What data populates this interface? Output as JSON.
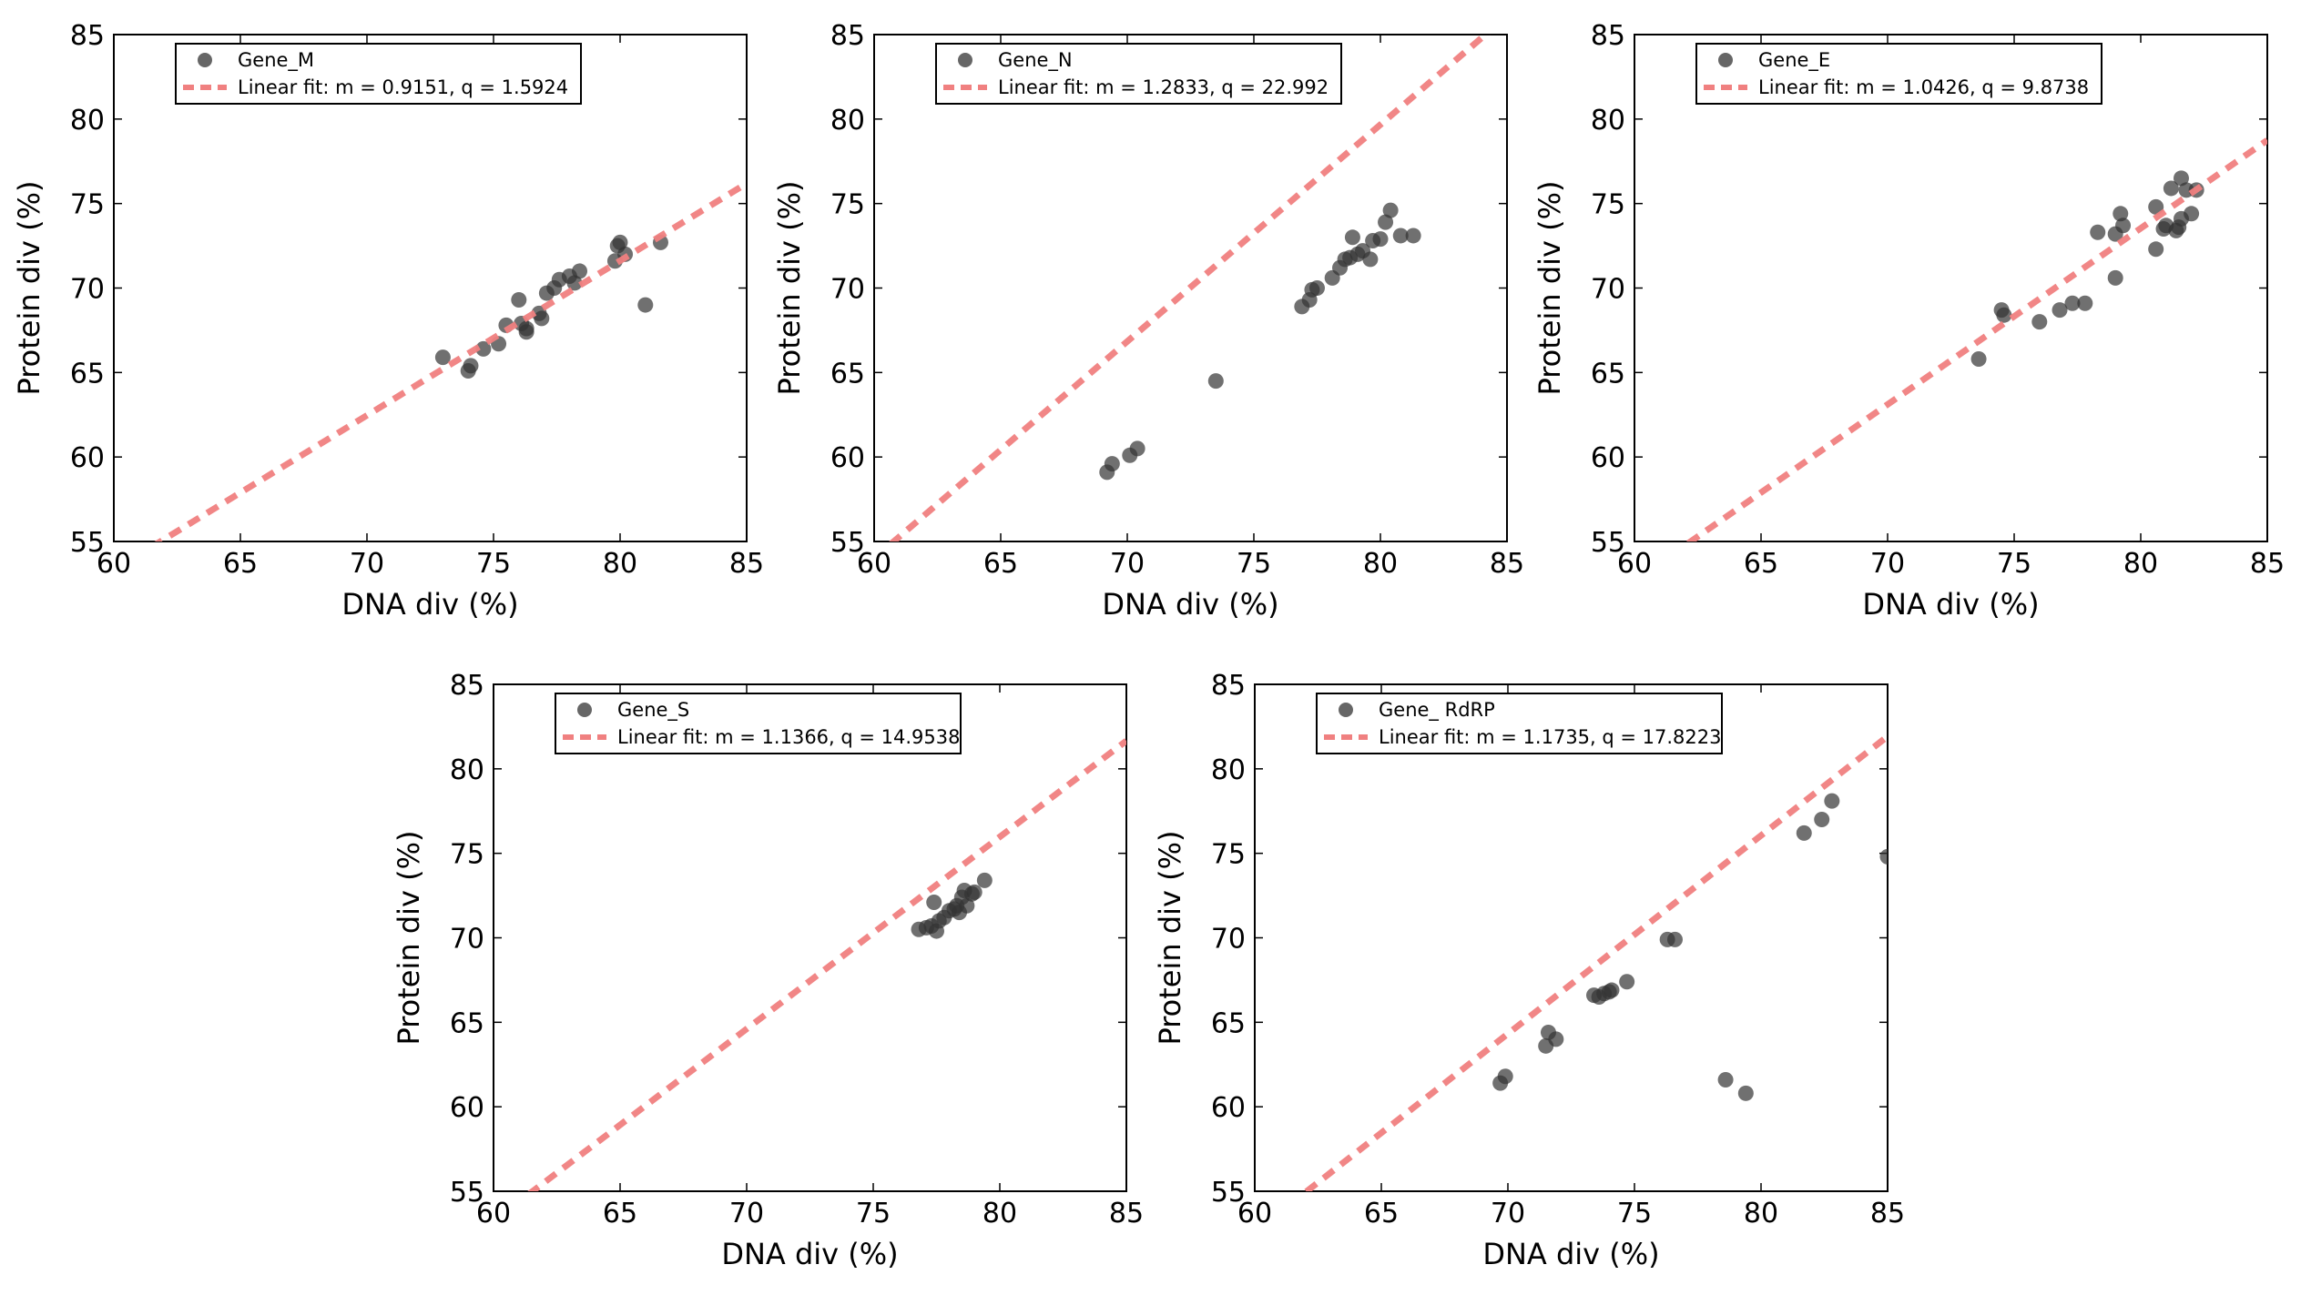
{
  "figure": {
    "description_free": true
  },
  "chart_data": [
    {
      "type": "scatter",
      "title": "",
      "xlabel": "DNA div (%)",
      "ylabel": "Protein div (%)",
      "xlim": [
        60,
        85
      ],
      "ylim": [
        55,
        85
      ],
      "xticks": [
        "60",
        "65",
        "70",
        "75",
        "80",
        "85"
      ],
      "yticks": [
        "55",
        "60",
        "65",
        "70",
        "75",
        "80",
        "85"
      ],
      "legend_position": "top-left",
      "series_name": "Gene_M",
      "fit_label": "Linear fit: m = 0.9151, q = 1.5924",
      "fit": {
        "m": 0.9151,
        "q": 1.5924
      },
      "points": [
        [
          73.0,
          65.9
        ],
        [
          74.0,
          65.1
        ],
        [
          74.1,
          65.4
        ],
        [
          74.6,
          66.4
        ],
        [
          75.2,
          66.7
        ],
        [
          75.5,
          67.8
        ],
        [
          76.0,
          69.3
        ],
        [
          76.1,
          67.9
        ],
        [
          76.3,
          67.4
        ],
        [
          76.3,
          67.6
        ],
        [
          76.8,
          68.5
        ],
        [
          76.9,
          68.2
        ],
        [
          77.1,
          69.7
        ],
        [
          77.4,
          70.0
        ],
        [
          77.6,
          70.5
        ],
        [
          78.0,
          70.7
        ],
        [
          78.2,
          70.3
        ],
        [
          78.4,
          71.0
        ],
        [
          79.8,
          71.6
        ],
        [
          79.9,
          72.5
        ],
        [
          80.0,
          72.7
        ],
        [
          80.2,
          72.0
        ],
        [
          81.0,
          69.0
        ],
        [
          81.6,
          72.7
        ]
      ]
    },
    {
      "type": "scatter",
      "title": "",
      "xlabel": "DNA div (%)",
      "ylabel": "Protein div (%)",
      "xlim": [
        60,
        85
      ],
      "ylim": [
        55,
        85
      ],
      "xticks": [
        "60",
        "65",
        "70",
        "75",
        "80",
        "85"
      ],
      "yticks": [
        "55",
        "60",
        "65",
        "70",
        "75",
        "80",
        "85"
      ],
      "legend_position": "top-left",
      "series_name": "Gene_N",
      "fit_label": "Linear fit: m = 1.2833, q = 22.992",
      "fit": {
        "m": 1.2833,
        "q": 22.992
      },
      "points": [
        [
          69.2,
          59.1
        ],
        [
          69.4,
          59.6
        ],
        [
          70.1,
          60.1
        ],
        [
          70.4,
          60.5
        ],
        [
          73.5,
          64.5
        ],
        [
          76.9,
          68.9
        ],
        [
          77.2,
          69.3
        ],
        [
          77.3,
          69.9
        ],
        [
          77.5,
          70.0
        ],
        [
          78.1,
          70.6
        ],
        [
          78.4,
          71.2
        ],
        [
          78.6,
          71.7
        ],
        [
          78.8,
          71.8
        ],
        [
          78.9,
          73.0
        ],
        [
          79.1,
          72.0
        ],
        [
          79.3,
          72.2
        ],
        [
          79.6,
          71.7
        ],
        [
          79.7,
          72.8
        ],
        [
          80.0,
          72.9
        ],
        [
          80.2,
          73.9
        ],
        [
          80.4,
          74.6
        ],
        [
          80.8,
          73.1
        ],
        [
          81.3,
          73.1
        ]
      ]
    },
    {
      "type": "scatter",
      "title": "",
      "xlabel": "DNA div (%)",
      "ylabel": "Protein div (%)",
      "xlim": [
        60,
        85
      ],
      "ylim": [
        55,
        85
      ],
      "xticks": [
        "60",
        "65",
        "70",
        "75",
        "80",
        "85"
      ],
      "yticks": [
        "55",
        "60",
        "65",
        "70",
        "75",
        "80",
        "85"
      ],
      "legend_position": "top-left",
      "series_name": "Gene_E",
      "fit_label": "Linear fit: m = 1.0426, q = 9.8738",
      "fit": {
        "m": 1.0426,
        "q": 9.8738
      },
      "points": [
        [
          73.6,
          65.8
        ],
        [
          74.5,
          68.7
        ],
        [
          74.6,
          68.4
        ],
        [
          76.0,
          68.0
        ],
        [
          76.8,
          68.7
        ],
        [
          77.3,
          69.1
        ],
        [
          77.8,
          69.1
        ],
        [
          78.3,
          73.3
        ],
        [
          79.0,
          73.2
        ],
        [
          79.0,
          70.6
        ],
        [
          79.2,
          74.4
        ],
        [
          79.3,
          73.7
        ],
        [
          80.6,
          72.3
        ],
        [
          80.6,
          74.8
        ],
        [
          80.9,
          73.5
        ],
        [
          81.0,
          73.7
        ],
        [
          81.2,
          75.9
        ],
        [
          81.4,
          73.4
        ],
        [
          81.5,
          73.6
        ],
        [
          81.6,
          76.5
        ],
        [
          81.6,
          74.1
        ],
        [
          81.8,
          75.8
        ],
        [
          82.0,
          74.4
        ],
        [
          82.2,
          75.8
        ]
      ]
    },
    {
      "type": "scatter",
      "title": "",
      "xlabel": "DNA div (%)",
      "ylabel": "Protein div (%)",
      "xlim": [
        60,
        85
      ],
      "ylim": [
        55,
        85
      ],
      "xticks": [
        "60",
        "65",
        "70",
        "75",
        "80",
        "85"
      ],
      "yticks": [
        "55",
        "60",
        "65",
        "70",
        "75",
        "80",
        "85"
      ],
      "legend_position": "top-left",
      "series_name": "Gene_S",
      "fit_label": "Linear fit: m = 1.1366, q = 14.9538",
      "fit": {
        "m": 1.1366,
        "q": 14.9538
      },
      "points": [
        [
          76.8,
          70.5
        ],
        [
          77.1,
          70.6
        ],
        [
          77.3,
          70.7
        ],
        [
          77.4,
          72.1
        ],
        [
          77.5,
          70.4
        ],
        [
          77.6,
          71.0
        ],
        [
          77.8,
          71.2
        ],
        [
          78.0,
          71.6
        ],
        [
          78.2,
          71.7
        ],
        [
          78.3,
          71.9
        ],
        [
          78.4,
          71.5
        ],
        [
          78.5,
          72.4
        ],
        [
          78.6,
          72.8
        ],
        [
          78.7,
          71.9
        ],
        [
          78.9,
          72.6
        ],
        [
          79.0,
          72.7
        ],
        [
          79.4,
          73.4
        ]
      ]
    },
    {
      "type": "scatter",
      "title": "",
      "xlabel": "DNA div (%)",
      "ylabel": "Protein div (%)",
      "xlim": [
        60,
        85
      ],
      "ylim": [
        55,
        85
      ],
      "xticks": [
        "60",
        "65",
        "70",
        "75",
        "80",
        "85"
      ],
      "yticks": [
        "55",
        "60",
        "65",
        "70",
        "75",
        "80",
        "85"
      ],
      "legend_position": "top-left",
      "series_name": "Gene_ RdRP",
      "fit_label": "Linear fit: m = 1.1735, q = 17.8223",
      "fit": {
        "m": 1.1735,
        "q": 17.8223
      },
      "points": [
        [
          69.7,
          61.4
        ],
        [
          69.9,
          61.8
        ],
        [
          71.5,
          63.6
        ],
        [
          71.6,
          64.4
        ],
        [
          71.9,
          64.0
        ],
        [
          73.4,
          66.6
        ],
        [
          73.6,
          66.5
        ],
        [
          73.8,
          66.7
        ],
        [
          74.0,
          66.8
        ],
        [
          74.1,
          66.9
        ],
        [
          74.7,
          67.4
        ],
        [
          76.3,
          69.9
        ],
        [
          76.6,
          69.9
        ],
        [
          78.6,
          61.6
        ],
        [
          79.4,
          60.8
        ],
        [
          81.7,
          76.2
        ],
        [
          82.4,
          77.0
        ],
        [
          82.8,
          78.1
        ],
        [
          85.0,
          74.8
        ]
      ]
    }
  ],
  "colors": {
    "marker": "#333333",
    "fit_line": "#f08080",
    "axis": "#000000"
  }
}
